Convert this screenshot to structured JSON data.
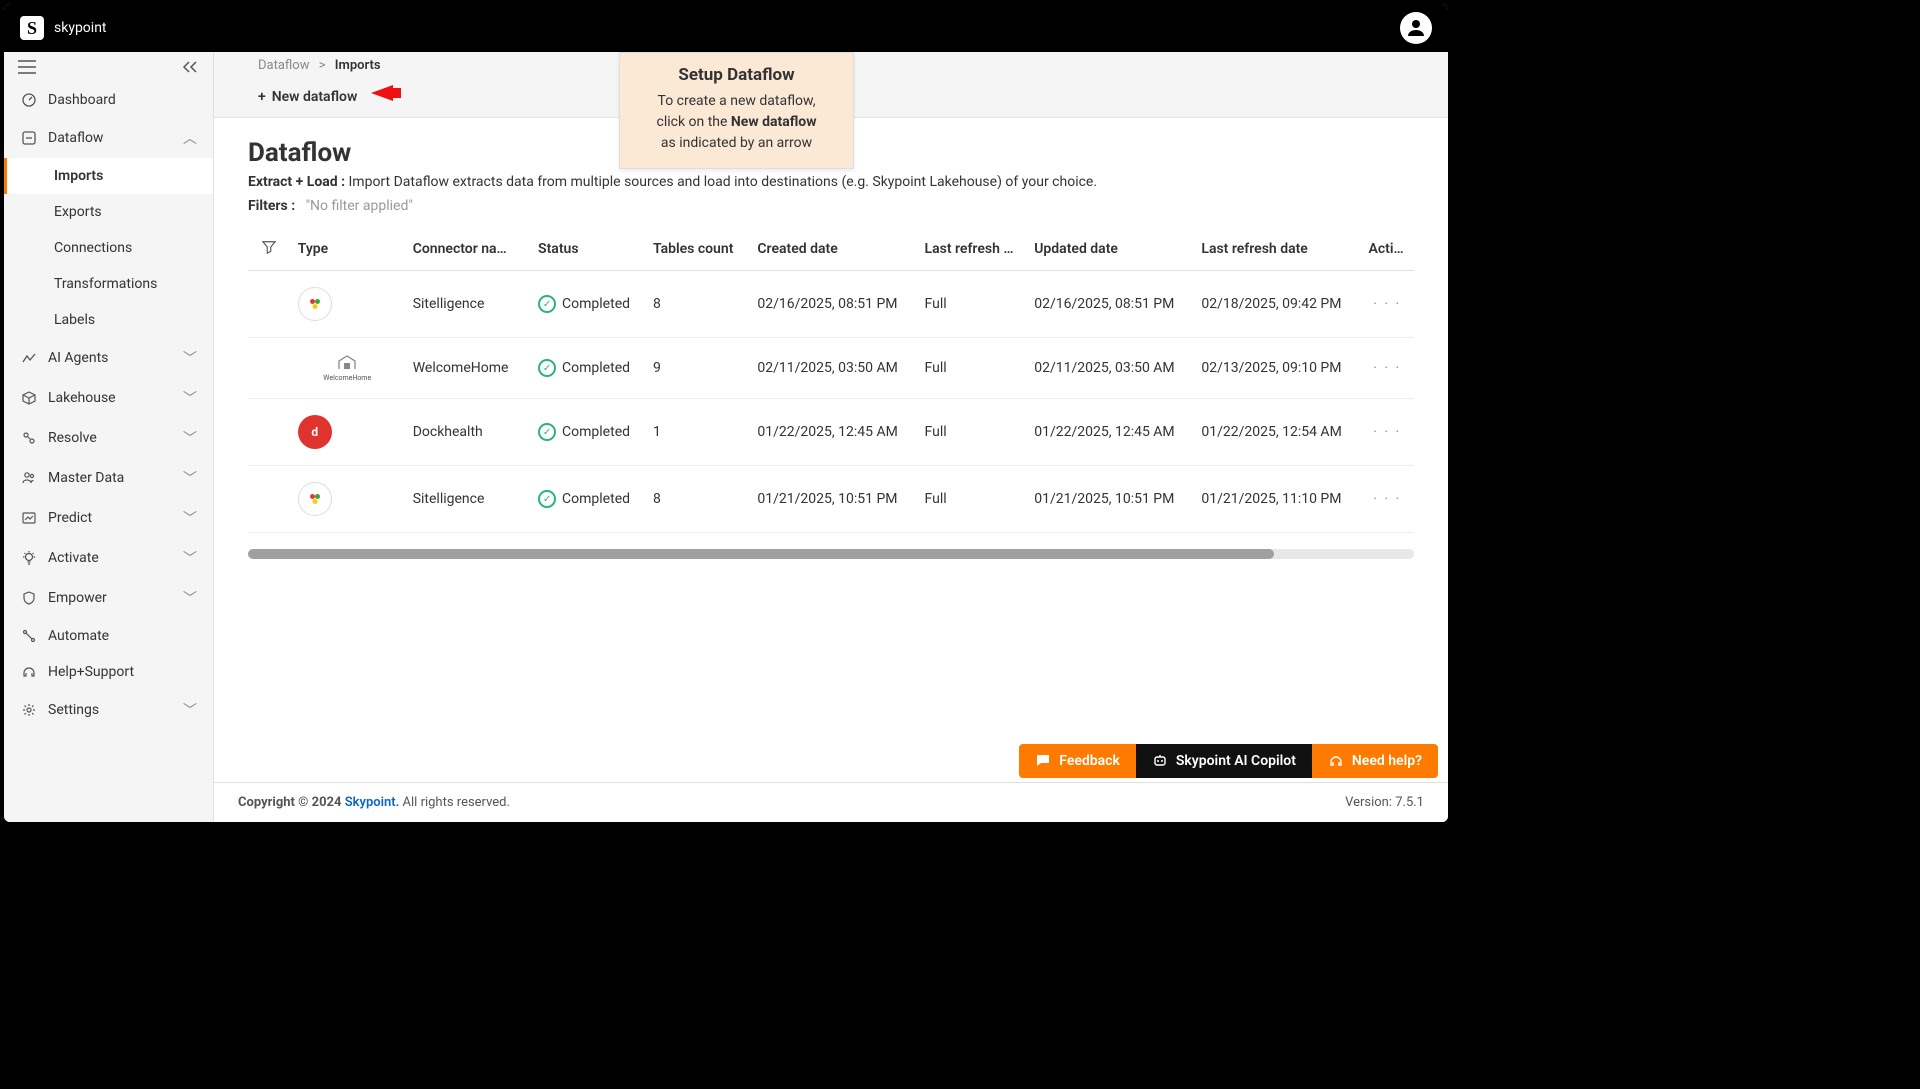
{
  "brand": "skypoint",
  "breadcrumbs": {
    "parent": "Dataflow",
    "current": "Imports",
    "sep": ">"
  },
  "newDataflow": "New dataflow",
  "callout": {
    "title": "Setup Dataflow",
    "line1": "To create a new dataflow,",
    "line2a": "click on the ",
    "line2b": "New dataflow",
    "line3": "as indicated by an arrow"
  },
  "page": {
    "title": "Dataflow",
    "subLabel": "Extract + Load :",
    "subText": " Import Dataflow extracts data from multiple sources and load into destinations (e.g. Skypoint Lakehouse) of your choice.",
    "filtersLabel": "Filters :",
    "filtersValue": "\"No filter applied\""
  },
  "columns": {
    "type": "Type",
    "connector": "Connector na…",
    "status": "Status",
    "tables": "Tables count",
    "created": "Created date",
    "lastRefreshType": "Last refresh …",
    "updated": "Updated date",
    "lastRefreshDate": "Last refresh date",
    "actions": "Acti…"
  },
  "rows": [
    {
      "iconKind": "gear",
      "connector": "Sitelligence",
      "status": "Completed",
      "tables": "8",
      "created": "02/16/2025, 08:51 PM",
      "lastType": "Full",
      "updated": "02/16/2025, 08:51 PM",
      "lastDate": "02/18/2025, 09:42 PM"
    },
    {
      "iconKind": "house",
      "connector": "WelcomeHome",
      "status": "Completed",
      "tables": "9",
      "created": "02/11/2025, 03:50 AM",
      "lastType": "Full",
      "updated": "02/11/2025, 03:50 AM",
      "lastDate": "02/13/2025, 09:10 PM"
    },
    {
      "iconKind": "red",
      "iconLetter": "d",
      "connector": "Dockhealth",
      "status": "Completed",
      "tables": "1",
      "created": "01/22/2025, 12:45 AM",
      "lastType": "Full",
      "updated": "01/22/2025, 12:45 AM",
      "lastDate": "01/22/2025, 12:54 AM"
    },
    {
      "iconKind": "gear",
      "connector": "Sitelligence",
      "status": "Completed",
      "tables": "8",
      "created": "01/21/2025, 10:51 PM",
      "lastType": "Full",
      "updated": "01/21/2025, 10:51 PM",
      "lastDate": "01/21/2025, 11:10 PM"
    }
  ],
  "sidebar": {
    "items": [
      {
        "label": "Dashboard",
        "icon": "gauge",
        "expandable": false
      },
      {
        "label": "Dataflow",
        "icon": "flow",
        "expandable": true,
        "expanded": true,
        "children": [
          {
            "label": "Imports",
            "active": true
          },
          {
            "label": "Exports"
          },
          {
            "label": "Connections"
          },
          {
            "label": "Transformations"
          },
          {
            "label": "Labels"
          }
        ]
      },
      {
        "label": "AI Agents",
        "icon": "agents",
        "expandable": true
      },
      {
        "label": "Lakehouse",
        "icon": "cube",
        "expandable": true
      },
      {
        "label": "Resolve",
        "icon": "resolve",
        "expandable": true
      },
      {
        "label": "Master Data",
        "icon": "master",
        "expandable": true
      },
      {
        "label": "Predict",
        "icon": "predict",
        "expandable": true
      },
      {
        "label": "Activate",
        "icon": "bulb",
        "expandable": true
      },
      {
        "label": "Empower",
        "icon": "shield",
        "expandable": true
      },
      {
        "label": "Automate",
        "icon": "automate",
        "expandable": false
      },
      {
        "label": "Help+Support",
        "icon": "help",
        "expandable": false
      },
      {
        "label": "Settings",
        "icon": "gear",
        "expandable": true
      }
    ]
  },
  "bottomButtons": {
    "feedback": "Feedback",
    "copilot": "Skypoint AI Copilot",
    "help": "Need help?"
  },
  "footer": {
    "copyPrefix": "Copyright © 2024 ",
    "copyLink": "Skypoint.",
    "copySuffix": " All rights reserved.",
    "version": "Version: 7.5.1"
  }
}
